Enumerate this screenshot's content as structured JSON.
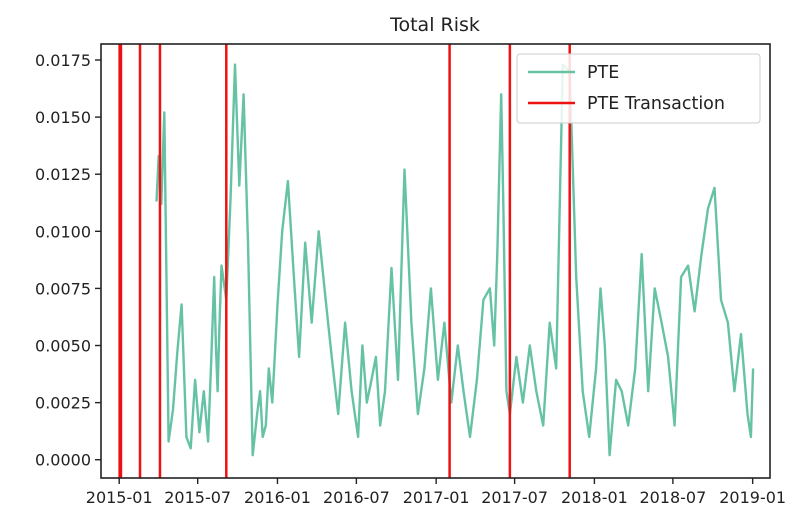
{
  "chart_data": {
    "type": "line",
    "title": "Total Risk",
    "xlabel": "",
    "ylabel": "",
    "x_ticks": [
      "2015-01",
      "2015-07",
      "2016-01",
      "2016-07",
      "2017-01",
      "2017-07",
      "2018-01",
      "2018-07",
      "2019-01"
    ],
    "y_ticks": [
      "0.0000",
      "0.0025",
      "0.0050",
      "0.0075",
      "0.0100",
      "0.0125",
      "0.0150",
      "0.0175"
    ],
    "xlim": [
      "2014-11-20",
      "2019-02-10"
    ],
    "ylim": [
      -0.0008,
      0.0182
    ],
    "grid": false,
    "legend": {
      "location": "top-right",
      "entries": [
        {
          "label": "PTE",
          "color": "#66c2a5"
        },
        {
          "label": "PTE Transaction",
          "color": "#ee1111"
        }
      ]
    },
    "series": [
      {
        "name": "PTE",
        "color": "#66c2a5",
        "x": [
          "2015-03-28",
          "2015-04-02",
          "2015-04-08",
          "2015-04-15",
          "2015-04-25",
          "2015-05-05",
          "2015-05-15",
          "2015-05-25",
          "2015-06-05",
          "2015-06-15",
          "2015-06-25",
          "2015-07-05",
          "2015-07-15",
          "2015-07-25",
          "2015-08-01",
          "2015-08-08",
          "2015-08-12",
          "2015-08-16",
          "2015-08-20",
          "2015-08-25",
          "2015-09-05",
          "2015-09-15",
          "2015-09-25",
          "2015-10-05",
          "2015-10-15",
          "2015-10-25",
          "2015-11-05",
          "2015-11-15",
          "2015-11-22",
          "2015-11-28",
          "2015-12-05",
          "2015-12-12",
          "2015-12-20",
          "2016-01-01",
          "2016-01-12",
          "2016-01-25",
          "2016-02-08",
          "2016-02-20",
          "2016-03-05",
          "2016-03-20",
          "2016-04-05",
          "2016-04-20",
          "2016-05-05",
          "2016-05-20",
          "2016-06-05",
          "2016-06-20",
          "2016-07-05",
          "2016-07-15",
          "2016-07-25",
          "2016-08-05",
          "2016-08-15",
          "2016-08-25",
          "2016-09-05",
          "2016-09-20",
          "2016-10-05",
          "2016-10-20",
          "2016-11-05",
          "2016-11-20",
          "2016-12-05",
          "2016-12-20",
          "2017-01-05",
          "2017-01-20",
          "2017-02-05",
          "2017-02-20",
          "2017-03-05",
          "2017-03-20",
          "2017-04-05",
          "2017-04-20",
          "2017-05-05",
          "2017-05-15",
          "2017-05-22",
          "2017-05-27",
          "2017-05-31",
          "2017-06-05",
          "2017-06-12",
          "2017-06-20",
          "2017-07-05",
          "2017-07-20",
          "2017-08-05",
          "2017-08-20",
          "2017-09-05",
          "2017-09-20",
          "2017-10-05",
          "2017-10-20",
          "2017-11-05",
          "2017-11-20",
          "2017-12-05",
          "2017-12-20",
          "2018-01-05",
          "2018-01-15",
          "2018-01-25",
          "2018-02-05",
          "2018-02-20",
          "2018-03-05",
          "2018-03-20",
          "2018-04-05",
          "2018-04-20",
          "2018-05-05",
          "2018-05-20",
          "2018-06-05",
          "2018-06-20",
          "2018-07-05",
          "2018-07-20",
          "2018-08-05",
          "2018-08-20",
          "2018-09-05",
          "2018-09-20",
          "2018-10-05",
          "2018-10-20",
          "2018-11-05",
          "2018-11-20",
          "2018-12-05",
          "2018-12-20",
          "2018-12-28",
          "2019-01-02"
        ],
        "y": [
          0.0113,
          0.0133,
          0.0112,
          0.0152,
          0.0008,
          0.0022,
          0.0047,
          0.0068,
          0.001,
          0.0005,
          0.0035,
          0.0012,
          0.003,
          0.0008,
          0.0042,
          0.008,
          0.005,
          0.003,
          0.0058,
          0.0085,
          0.007,
          0.0115,
          0.0173,
          0.012,
          0.016,
          0.0095,
          0.0002,
          0.002,
          0.003,
          0.001,
          0.0015,
          0.004,
          0.0025,
          0.0068,
          0.01,
          0.0122,
          0.008,
          0.0045,
          0.0095,
          0.006,
          0.01,
          0.0072,
          0.0045,
          0.002,
          0.006,
          0.003,
          0.001,
          0.005,
          0.0025,
          0.0035,
          0.0045,
          0.0015,
          0.003,
          0.0084,
          0.0035,
          0.0127,
          0.006,
          0.002,
          0.004,
          0.0075,
          0.0035,
          0.006,
          0.0025,
          0.005,
          0.003,
          0.001,
          0.0035,
          0.007,
          0.0075,
          0.005,
          0.009,
          0.013,
          0.016,
          0.011,
          0.003,
          0.002,
          0.0045,
          0.0025,
          0.005,
          0.003,
          0.0015,
          0.006,
          0.004,
          0.0173,
          0.017,
          0.008,
          0.003,
          0.001,
          0.004,
          0.0075,
          0.005,
          0.0002,
          0.0035,
          0.003,
          0.0015,
          0.004,
          0.009,
          0.003,
          0.0075,
          0.006,
          0.0045,
          0.0015,
          0.008,
          0.0085,
          0.0065,
          0.009,
          0.011,
          0.0119,
          0.007,
          0.006,
          0.003,
          0.0055,
          0.002,
          0.001,
          0.004
        ]
      },
      {
        "name": "PTE Transaction",
        "color": "#ee1111",
        "x": [
          "2015-01-02",
          "2015-01-05",
          "2015-02-18",
          "2015-04-05",
          "2015-09-05",
          "2017-02-01",
          "2017-06-20",
          "2017-11-05"
        ]
      }
    ]
  }
}
